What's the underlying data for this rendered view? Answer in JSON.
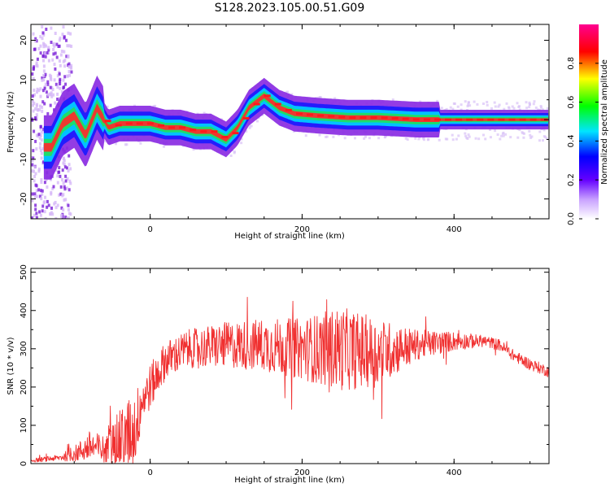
{
  "title": "S128.2023.105.00.51.G09",
  "chart_data": [
    {
      "type": "heatmap",
      "xlabel": "Height of straight line (km)",
      "ylabel": "Frequency (Hz)",
      "xlim": [
        -157,
        525
      ],
      "ylim": [
        -25,
        24
      ],
      "x_ticks": [
        0,
        200,
        400
      ],
      "y_ticks": [
        -20,
        -10,
        0,
        10,
        20
      ],
      "colorbar": {
        "label": "Normalized spectral amplitude",
        "range": [
          0,
          1
        ],
        "ticks": [
          0.0,
          0.2,
          0.4,
          0.6,
          0.8
        ],
        "colormap": [
          "#ffffff",
          "#8a2be2",
          "#0000ff",
          "#00ffff",
          "#00ff00",
          "#ffff00",
          "#ff0000",
          "#ff00a0"
        ]
      },
      "ridge": {
        "x": [
          -130,
          -115,
          -100,
          -85,
          -70,
          -55,
          -40,
          -20,
          0,
          20,
          40,
          60,
          80,
          100,
          115,
          130,
          150,
          170,
          190,
          220,
          260,
          300,
          350,
          400,
          450,
          525
        ],
        "freq": [
          -7,
          -1,
          1,
          -4,
          3,
          -2,
          -1,
          -1,
          -1,
          -2,
          -2,
          -3,
          -3,
          -5,
          -2,
          3,
          6,
          3,
          1.5,
          1,
          0.5,
          0.5,
          0,
          0,
          0,
          0
        ]
      },
      "noise_band_x_max": -115
    },
    {
      "type": "line",
      "xlabel": "Height of straight line (km)",
      "ylabel": "SNR (10 * v/v)",
      "xlim": [
        -157,
        525
      ],
      "ylim": [
        0,
        510
      ],
      "x_ticks": [
        0,
        200,
        400
      ],
      "y_ticks": [
        0,
        100,
        200,
        300,
        400,
        500
      ],
      "color": "#f03030",
      "envelope": {
        "x": [
          -157,
          -120,
          -100,
          -80,
          -60,
          -40,
          -20,
          -10,
          0,
          20,
          50,
          100,
          150,
          200,
          250,
          300,
          350,
          400,
          440,
          460,
          480,
          500,
          525
        ],
        "mean": [
          8,
          15,
          25,
          45,
          35,
          60,
          90,
          170,
          200,
          270,
          300,
          310,
          310,
          300,
          300,
          290,
          310,
          320,
          320,
          310,
          280,
          260,
          240
        ],
        "amplitude": [
          5,
          8,
          20,
          40,
          40,
          80,
          100,
          60,
          60,
          50,
          50,
          60,
          70,
          80,
          110,
          90,
          40,
          25,
          15,
          15,
          15,
          15,
          15
        ]
      }
    }
  ]
}
